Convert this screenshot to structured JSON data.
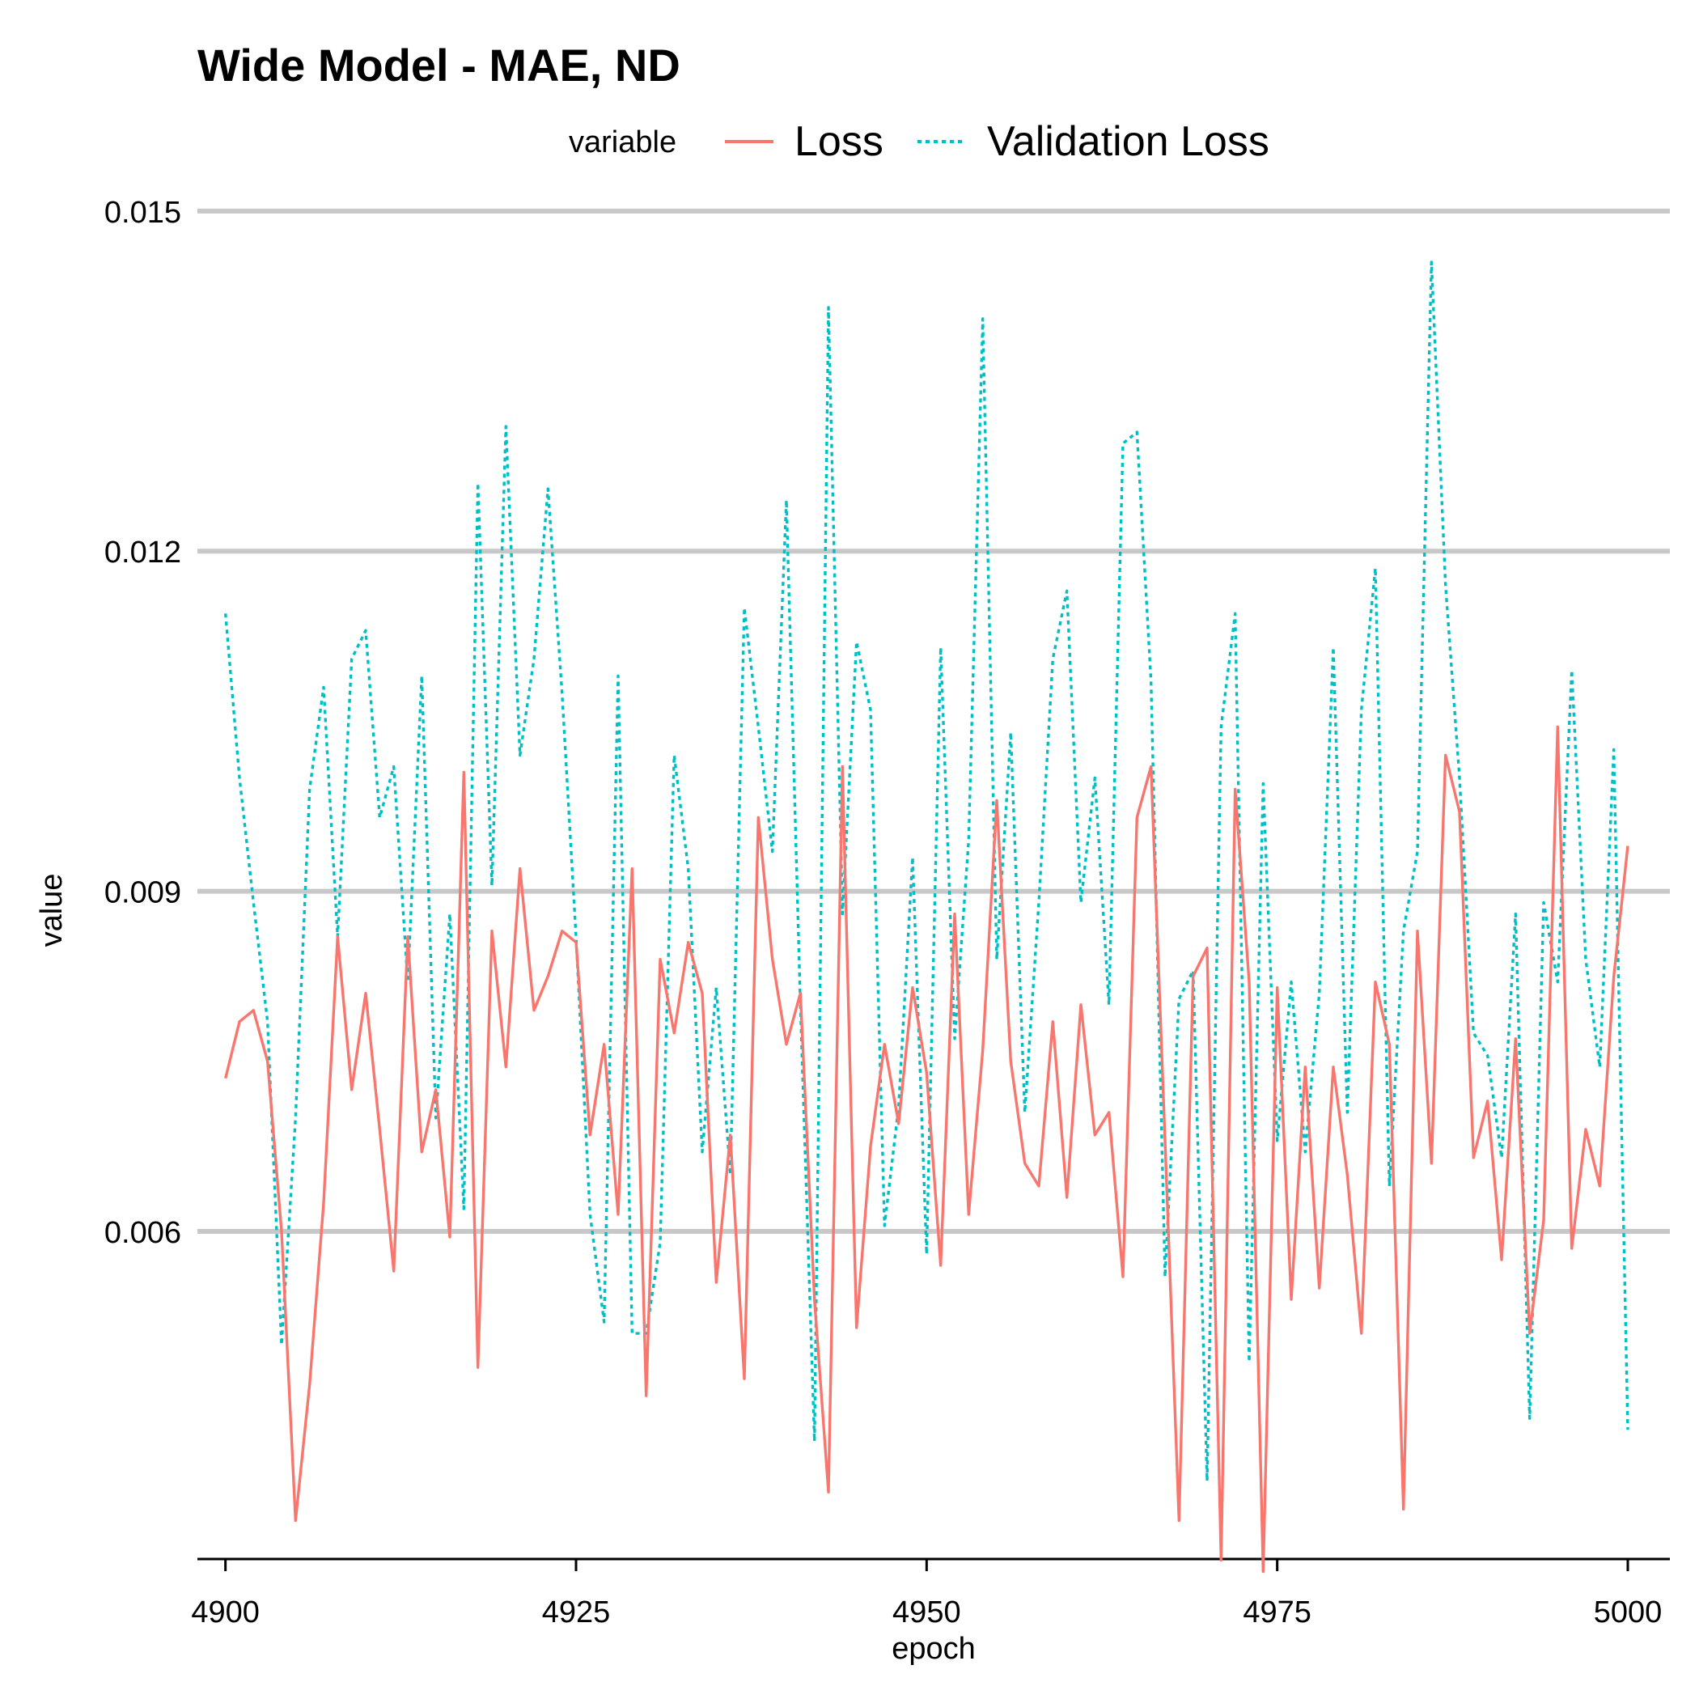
{
  "chart_data": {
    "type": "line",
    "title": "Wide Model - MAE, ND",
    "xlabel": "epoch",
    "ylabel": "value",
    "xlim": [
      4898,
      5003
    ],
    "ylim": [
      0.00311,
      0.01522
    ],
    "x_ticks": [
      4900,
      4925,
      4950,
      4975,
      5000
    ],
    "x_tick_labels": [
      "4900",
      "4925",
      "4950",
      "4975",
      "5000"
    ],
    "y_ticks": [
      0.006,
      0.009,
      0.012,
      0.015
    ],
    "y_tick_labels": [
      "0.006",
      "0.009",
      "0.012",
      "0.015"
    ],
    "grid": "horizontal major",
    "legend": {
      "title": "variable",
      "position": "top"
    },
    "x_start": 4900,
    "series": [
      {
        "name": "Loss",
        "color": "#F8766D",
        "linestyle": "solid",
        "values": [
          0.00735,
          0.00785,
          0.00795,
          0.0075,
          0.006,
          0.00345,
          0.00465,
          0.00625,
          0.0086,
          0.00725,
          0.0081,
          0.0069,
          0.00565,
          0.0086,
          0.0067,
          0.00725,
          0.00595,
          0.01005,
          0.0048,
          0.00865,
          0.00745,
          0.0092,
          0.00795,
          0.00825,
          0.00865,
          0.00855,
          0.00685,
          0.00765,
          0.00615,
          0.0092,
          0.00455,
          0.0084,
          0.00775,
          0.00855,
          0.0081,
          0.00555,
          0.00685,
          0.0047,
          0.00965,
          0.0084,
          0.00765,
          0.0081,
          0.0054,
          0.0037,
          0.0101,
          0.00515,
          0.00675,
          0.00765,
          0.00695,
          0.00815,
          0.0074,
          0.0057,
          0.0088,
          0.00615,
          0.0076,
          0.0098,
          0.0075,
          0.0066,
          0.0064,
          0.00785,
          0.0063,
          0.008,
          0.00685,
          0.00705,
          0.0056,
          0.00965,
          0.0101,
          0.0068,
          0.00345,
          0.00825,
          0.0085,
          0.0031,
          0.0099,
          0.0082,
          0.003,
          0.00815,
          0.0054,
          0.00745,
          0.0055,
          0.00745,
          0.0065,
          0.0051,
          0.0082,
          0.00765,
          0.00355,
          0.00865,
          0.0066,
          0.0102,
          0.0097,
          0.00665,
          0.00715,
          0.00575,
          0.0077,
          0.0051,
          0.0061,
          0.01045,
          0.00585,
          0.0069,
          0.0064,
          0.00825,
          0.0094
        ]
      },
      {
        "name": "Validation Loss",
        "color": "#00BFC4",
        "linestyle": "dotted",
        "values": [
          0.01145,
          0.01,
          0.0089,
          0.00785,
          0.005,
          0.007,
          0.0099,
          0.0108,
          0.0086,
          0.01105,
          0.0113,
          0.00965,
          0.0101,
          0.0082,
          0.0109,
          0.007,
          0.0088,
          0.0062,
          0.0126,
          0.00905,
          0.0131,
          0.0102,
          0.01105,
          0.01255,
          0.01075,
          0.0086,
          0.00615,
          0.0052,
          0.0109,
          0.0051,
          0.0051,
          0.0059,
          0.0102,
          0.0092,
          0.0067,
          0.00815,
          0.0065,
          0.0115,
          0.01045,
          0.00935,
          0.01245,
          0.008,
          0.00415,
          0.01415,
          0.0088,
          0.0112,
          0.0106,
          0.00605,
          0.0071,
          0.0093,
          0.0058,
          0.01115,
          0.0077,
          0.00945,
          0.01405,
          0.0084,
          0.0104,
          0.00705,
          0.0089,
          0.01105,
          0.01165,
          0.0089,
          0.01,
          0.008,
          0.01295,
          0.01305,
          0.01085,
          0.0056,
          0.00805,
          0.0083,
          0.0038,
          0.01045,
          0.01145,
          0.00485,
          0.00995,
          0.0068,
          0.0082,
          0.0067,
          0.0081,
          0.01115,
          0.00705,
          0.0106,
          0.01185,
          0.0064,
          0.00865,
          0.00935,
          0.01455,
          0.0117,
          0.01,
          0.00775,
          0.00755,
          0.00665,
          0.0088,
          0.00435,
          0.0089,
          0.0082,
          0.01095,
          0.0084,
          0.00745,
          0.01025,
          0.00425
        ]
      }
    ]
  }
}
